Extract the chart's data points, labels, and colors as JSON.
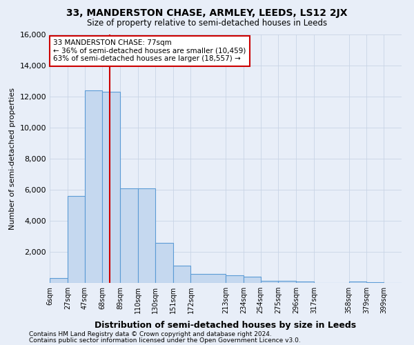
{
  "title1": "33, MANDERSTON CHASE, ARMLEY, LEEDS, LS12 2JX",
  "title2": "Size of property relative to semi-detached houses in Leeds",
  "xlabel": "Distribution of semi-detached houses by size in Leeds",
  "ylabel": "Number of semi-detached properties",
  "footnote1": "Contains HM Land Registry data © Crown copyright and database right 2024.",
  "footnote2": "Contains public sector information licensed under the Open Government Licence v3.0.",
  "annotation_title": "33 MANDERSTON CHASE: 77sqm",
  "annotation_line1": "← 36% of semi-detached houses are smaller (10,459)",
  "annotation_line2": "63% of semi-detached houses are larger (18,557) →",
  "property_sqm": 77,
  "bar_edges": [
    6,
    27,
    47,
    68,
    89,
    110,
    130,
    151,
    172,
    213,
    234,
    254,
    275,
    296,
    317,
    358,
    379,
    399,
    420
  ],
  "bar_heights": [
    300,
    5600,
    12400,
    12300,
    6100,
    6100,
    2600,
    1100,
    600,
    500,
    400,
    150,
    150,
    100,
    0,
    100,
    50,
    0
  ],
  "bar_color": "#c5d8ef",
  "bar_edge_color": "#5b9bd5",
  "grid_color": "#c8d4e6",
  "annotation_box_color": "#ffffff",
  "annotation_box_edge": "#cc0000",
  "vline_color": "#cc0000",
  "ylim": [
    0,
    16000
  ],
  "yticks": [
    0,
    2000,
    4000,
    6000,
    8000,
    10000,
    12000,
    14000,
    16000
  ],
  "bg_color": "#e8eef8"
}
